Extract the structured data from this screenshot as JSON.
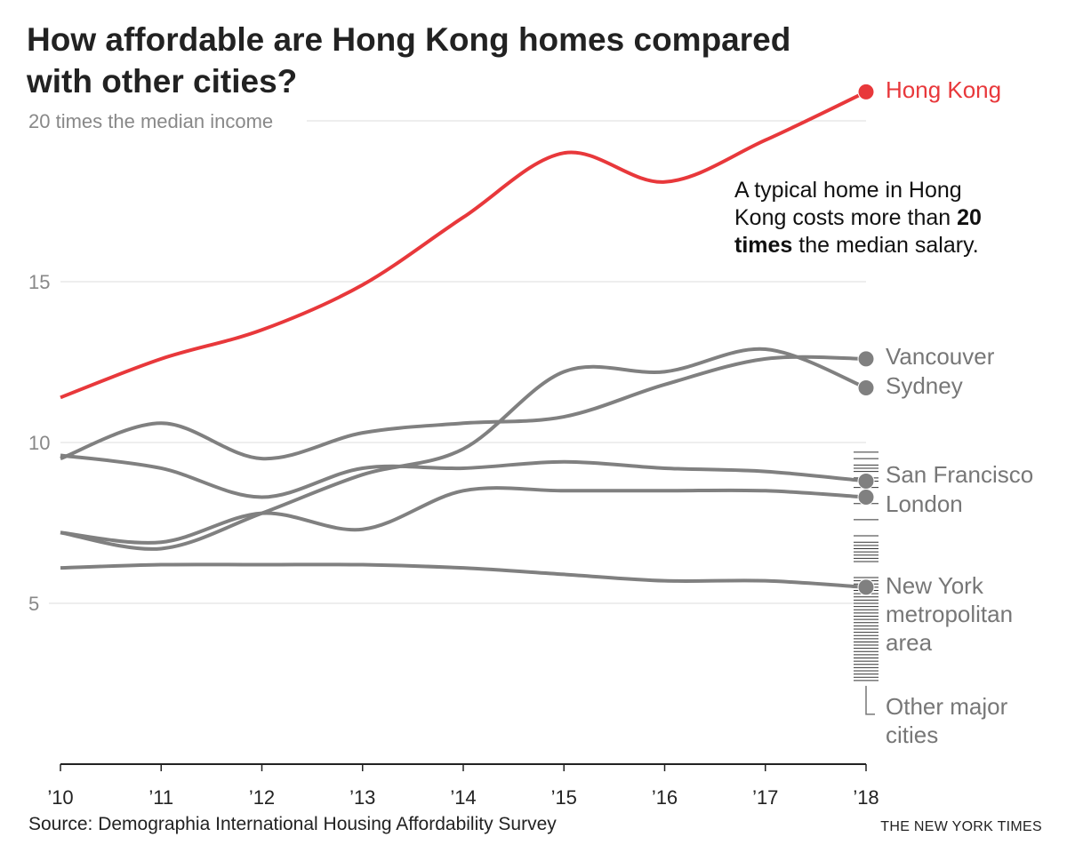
{
  "chart_data": {
    "type": "line",
    "title": "How affordable are Hong Kong homes compared with other cities?",
    "title_lines": [
      "How affordable are Hong Kong homes compared",
      "with other cities?"
    ],
    "ylabel_top": "20 times the median income",
    "y_ticks": [
      "5",
      "10",
      "15"
    ],
    "ylim": [
      0,
      21
    ],
    "x": [
      "’10",
      "’11",
      "’12",
      "’13",
      "’14",
      "’15",
      "’16",
      "’17",
      "’18"
    ],
    "grid": true,
    "series": [
      {
        "name": "Hong Kong",
        "color": "#e8383b",
        "values": [
          11.4,
          12.6,
          13.5,
          14.9,
          17.0,
          19.0,
          18.1,
          19.4,
          20.9
        ]
      },
      {
        "name": "Vancouver",
        "color": "#808080",
        "values": [
          9.5,
          10.6,
          9.5,
          10.3,
          10.6,
          10.8,
          11.8,
          12.6,
          12.6
        ]
      },
      {
        "name": "Sydney",
        "color": "#808080",
        "values": [
          7.2,
          6.7,
          7.8,
          9.0,
          9.8,
          12.2,
          12.2,
          12.9,
          11.7
        ]
      },
      {
        "name": "San Francisco",
        "color": "#808080",
        "values": [
          9.6,
          9.2,
          8.3,
          9.2,
          9.2,
          9.4,
          9.2,
          9.1,
          8.8
        ]
      },
      {
        "name": "London",
        "color": "#808080",
        "values": [
          7.2,
          6.9,
          7.8,
          7.3,
          8.5,
          8.5,
          8.5,
          8.5,
          8.3
        ]
      },
      {
        "name": "New York metropolitan area",
        "label_lines": [
          "New York",
          "metropolitan",
          "area"
        ],
        "color": "#808080",
        "values": [
          6.1,
          6.2,
          6.2,
          6.2,
          6.1,
          5.9,
          5.7,
          5.7,
          5.5
        ]
      }
    ],
    "other_cities": {
      "label_lines": [
        "Other major",
        "cities"
      ],
      "values_2018": [
        9.7,
        9.5,
        9.3,
        9.2,
        9.1,
        8.9,
        8.8,
        8.6,
        8.1,
        7.6,
        7.1,
        6.9,
        6.8,
        6.7,
        6.6,
        6.5,
        6.4,
        6.3,
        5.8,
        5.7,
        5.6,
        5.5,
        5.4,
        5.3,
        5.2,
        5.1,
        5.0,
        4.9,
        4.8,
        4.7,
        4.6,
        4.5,
        4.4,
        4.3,
        4.2,
        4.1,
        4.0,
        3.9,
        3.8,
        3.7,
        3.6,
        3.5,
        3.4,
        3.3,
        3.2,
        3.1,
        3.0,
        2.9,
        2.8,
        2.7,
        2.6
      ]
    },
    "annotation": {
      "lines": [
        [
          {
            "t": "A typical home in Hong",
            "b": false
          }
        ],
        [
          {
            "t": "Kong costs more than ",
            "b": false
          },
          {
            "t": "20",
            "b": true
          }
        ],
        [
          {
            "t": "times",
            "b": true
          },
          {
            "t": " the median salary.",
            "b": false
          }
        ]
      ]
    },
    "source": "Source: Demographia International Housing Affordability Survey",
    "credit": "THE NEW YORK TIMES"
  }
}
